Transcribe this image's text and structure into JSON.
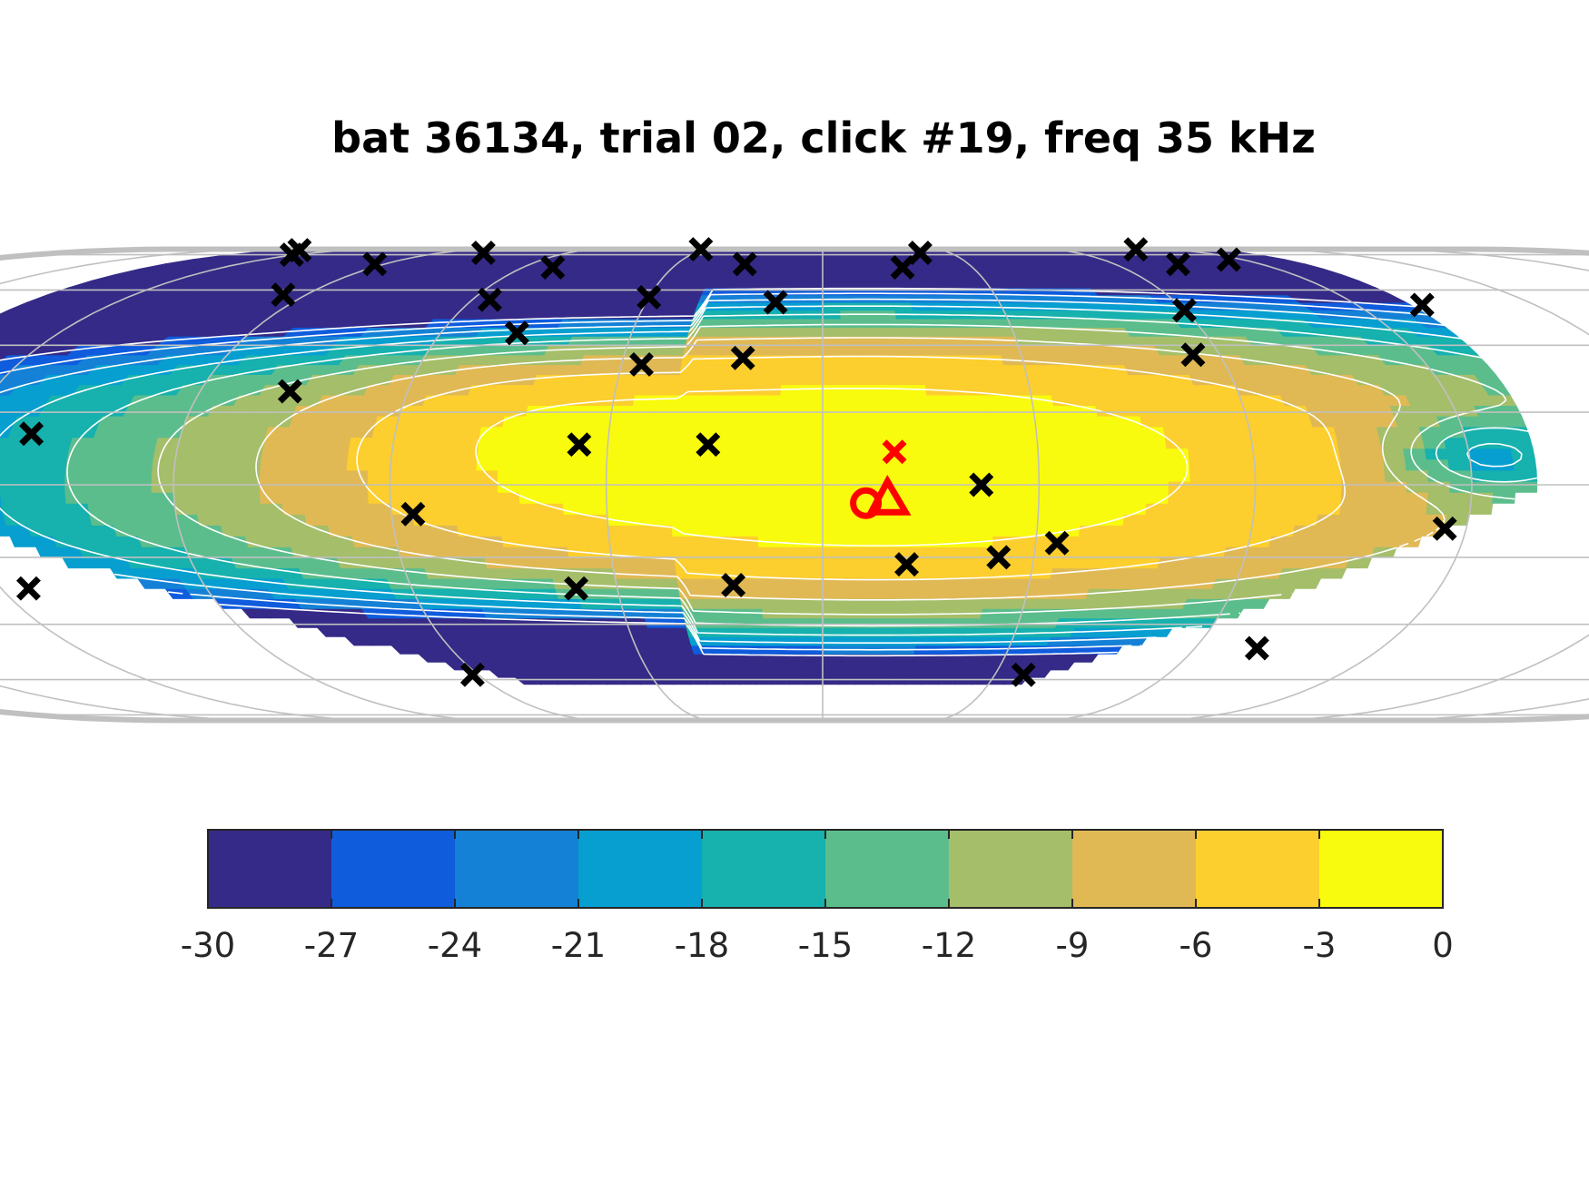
{
  "chart_data": {
    "type": "heatmap",
    "title": "bat 36134, trial 02, click #19, freq 35 kHz",
    "projection": "eckert-iv",
    "grid": true,
    "colorbar": {
      "placement": "bottom",
      "levels": [
        -30,
        -27,
        -24,
        -21,
        -18,
        -15,
        -12,
        -9,
        -6,
        -3,
        0
      ],
      "tick_labels": [
        "-30",
        "-27",
        "-24",
        "-21",
        "-18",
        "-15",
        "-12",
        "-9",
        "-6",
        "-3",
        "0"
      ],
      "colors": [
        "#352a87",
        "#0f5cdd",
        "#1481d6",
        "#069fd0",
        "#17b1ae",
        "#5cbd8c",
        "#a5be6a",
        "#e0b955",
        "#fcce2e",
        "#f9fb0e"
      ]
    },
    "markers": {
      "mics": {
        "symbol": "x",
        "color": "#000000",
        "points": [
          [
            -133,
            86
          ],
          [
            -121,
            80
          ],
          [
            -80,
            82
          ],
          [
            -33,
            89
          ],
          [
            23,
            82
          ],
          [
            83,
            88
          ],
          [
            -94,
            58
          ],
          [
            -92,
            73
          ],
          [
            -54,
            71
          ],
          [
            -16,
            73
          ],
          [
            16,
            71
          ],
          [
            73,
            73
          ],
          [
            87,
            76
          ],
          [
            -57,
            56
          ],
          [
            -30,
            57
          ],
          [
            -8,
            55
          ],
          [
            60,
            52
          ],
          [
            101,
            54
          ],
          [
            -77,
            26
          ],
          [
            -48,
            44
          ],
          [
            -27,
            34
          ],
          [
            -12,
            36
          ],
          [
            56,
            37
          ],
          [
            -111,
            14
          ],
          [
            -34,
            11
          ],
          [
            -16,
            11
          ],
          [
            22,
            0
          ],
          [
            -57,
            -8
          ],
          [
            33,
            -16
          ],
          [
            -116,
            -29
          ],
          [
            -36,
            -29
          ],
          [
            -13,
            -28
          ],
          [
            12,
            -22
          ],
          [
            25,
            -20
          ],
          [
            87,
            -12
          ],
          [
            70,
            -48
          ],
          [
            -61,
            -58
          ],
          [
            35,
            -58
          ]
        ]
      },
      "peak_marker": {
        "symbol": "x",
        "color": "#ff0000",
        "point": [
          10,
          9
        ]
      },
      "beam_aim_marker": {
        "symbol": "o",
        "color": "#ff0000",
        "point": [
          6,
          -5
        ]
      },
      "max_marker": {
        "symbol": "triangle",
        "color": "#ff0000",
        "point": [
          9,
          -5
        ]
      }
    }
  }
}
